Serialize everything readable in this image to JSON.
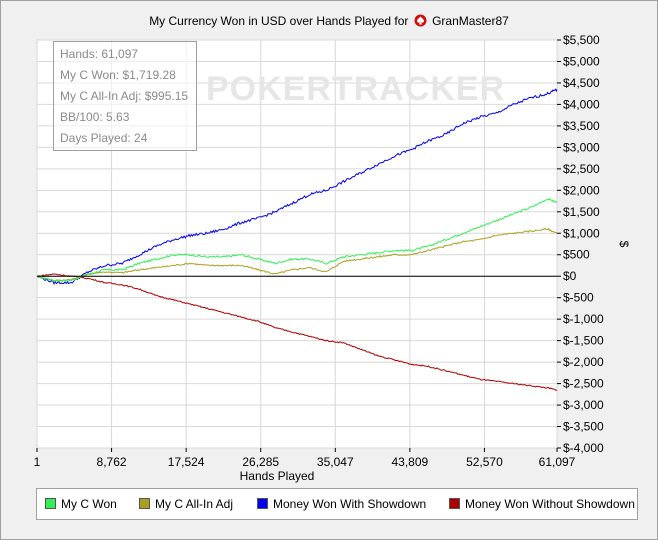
{
  "title_text": "My Currency Won in USD over Hands Played for",
  "player": "GranMaster87",
  "watermark": "POKERTRACKER",
  "stats": {
    "hands": "Hands: 61,097",
    "c_won": "My C Won: $1,719.28",
    "c_allin": "My C All-In Adj: $995.15",
    "bb100": "BB/100: 5.63",
    "days": "Days Played: 24"
  },
  "colors": {
    "green": "#33ee55",
    "olive": "#aaa020",
    "blue": "#0000ee",
    "red": "#aa0000"
  },
  "chart_data": {
    "type": "line",
    "title": "My Currency Won in USD over Hands Played for GranMaster87",
    "xlabel": "Hands Played",
    "ylabel": "$",
    "xlim": [
      1,
      61097
    ],
    "ylim": [
      -4000,
      5500
    ],
    "x_ticks": [
      1,
      8762,
      17524,
      26285,
      35047,
      43809,
      52570,
      61097
    ],
    "x_tick_labels": [
      "1",
      "8,762",
      "17,524",
      "26,285",
      "35,047",
      "43,809",
      "52,570",
      "61,097"
    ],
    "y_ticks": [
      5500,
      5000,
      4500,
      4000,
      3500,
      3000,
      2500,
      2000,
      1500,
      1000,
      500,
      0,
      -500,
      -1000,
      -1500,
      -2000,
      -2500,
      -3000,
      -3500,
      -4000
    ],
    "y_tick_labels": [
      "$5,500",
      "$5,000",
      "$4,500",
      "$4,000",
      "$3,500",
      "$3,000",
      "$2,500",
      "$2,000",
      "$1,500",
      "$1,000",
      "$500",
      "$0",
      "$-500",
      "$-1,000",
      "$-1,500",
      "$-2,000",
      "$-2,500",
      "$-3,000",
      "$-3,500",
      "$-4,000"
    ],
    "grid": true,
    "legend_placement": "bottom",
    "x": [
      1,
      2000,
      4000,
      6000,
      8000,
      10000,
      12000,
      14000,
      16000,
      18000,
      20000,
      22000,
      24000,
      26000,
      28000,
      30000,
      32000,
      34000,
      36000,
      38000,
      40000,
      42000,
      44000,
      46000,
      48000,
      50000,
      52000,
      54000,
      56000,
      58000,
      60000,
      61097
    ],
    "series": [
      {
        "name": "My C Won",
        "color": "#33ee55",
        "values": [
          0,
          -100,
          -100,
          50,
          150,
          150,
          300,
          400,
          500,
          500,
          450,
          450,
          500,
          400,
          300,
          400,
          400,
          300,
          450,
          500,
          550,
          600,
          600,
          700,
          850,
          1000,
          1150,
          1300,
          1450,
          1600,
          1800,
          1719
        ]
      },
      {
        "name": "My C All-In Adj",
        "color": "#aaa020",
        "values": [
          0,
          -100,
          -80,
          50,
          100,
          80,
          150,
          200,
          250,
          300,
          250,
          250,
          250,
          150,
          50,
          150,
          200,
          100,
          350,
          400,
          450,
          500,
          500,
          600,
          700,
          800,
          850,
          950,
          1000,
          1050,
          1100,
          995
        ]
      },
      {
        "name": "Money Won With Showdown",
        "color": "#0000ee",
        "values": [
          0,
          -150,
          -150,
          100,
          250,
          300,
          500,
          700,
          850,
          950,
          1000,
          1100,
          1250,
          1350,
          1500,
          1700,
          1900,
          2000,
          2200,
          2400,
          2600,
          2800,
          2950,
          3150,
          3300,
          3550,
          3700,
          3800,
          4000,
          4150,
          4250,
          4350
        ]
      },
      {
        "name": "Money Won Without Showdown",
        "color": "#aa0000",
        "values": [
          0,
          50,
          0,
          -50,
          -150,
          -200,
          -300,
          -450,
          -550,
          -650,
          -750,
          -850,
          -950,
          -1050,
          -1200,
          -1300,
          -1400,
          -1500,
          -1550,
          -1700,
          -1850,
          -1950,
          -2050,
          -2100,
          -2200,
          -2300,
          -2400,
          -2450,
          -2500,
          -2550,
          -2600,
          -2650
        ]
      }
    ]
  }
}
